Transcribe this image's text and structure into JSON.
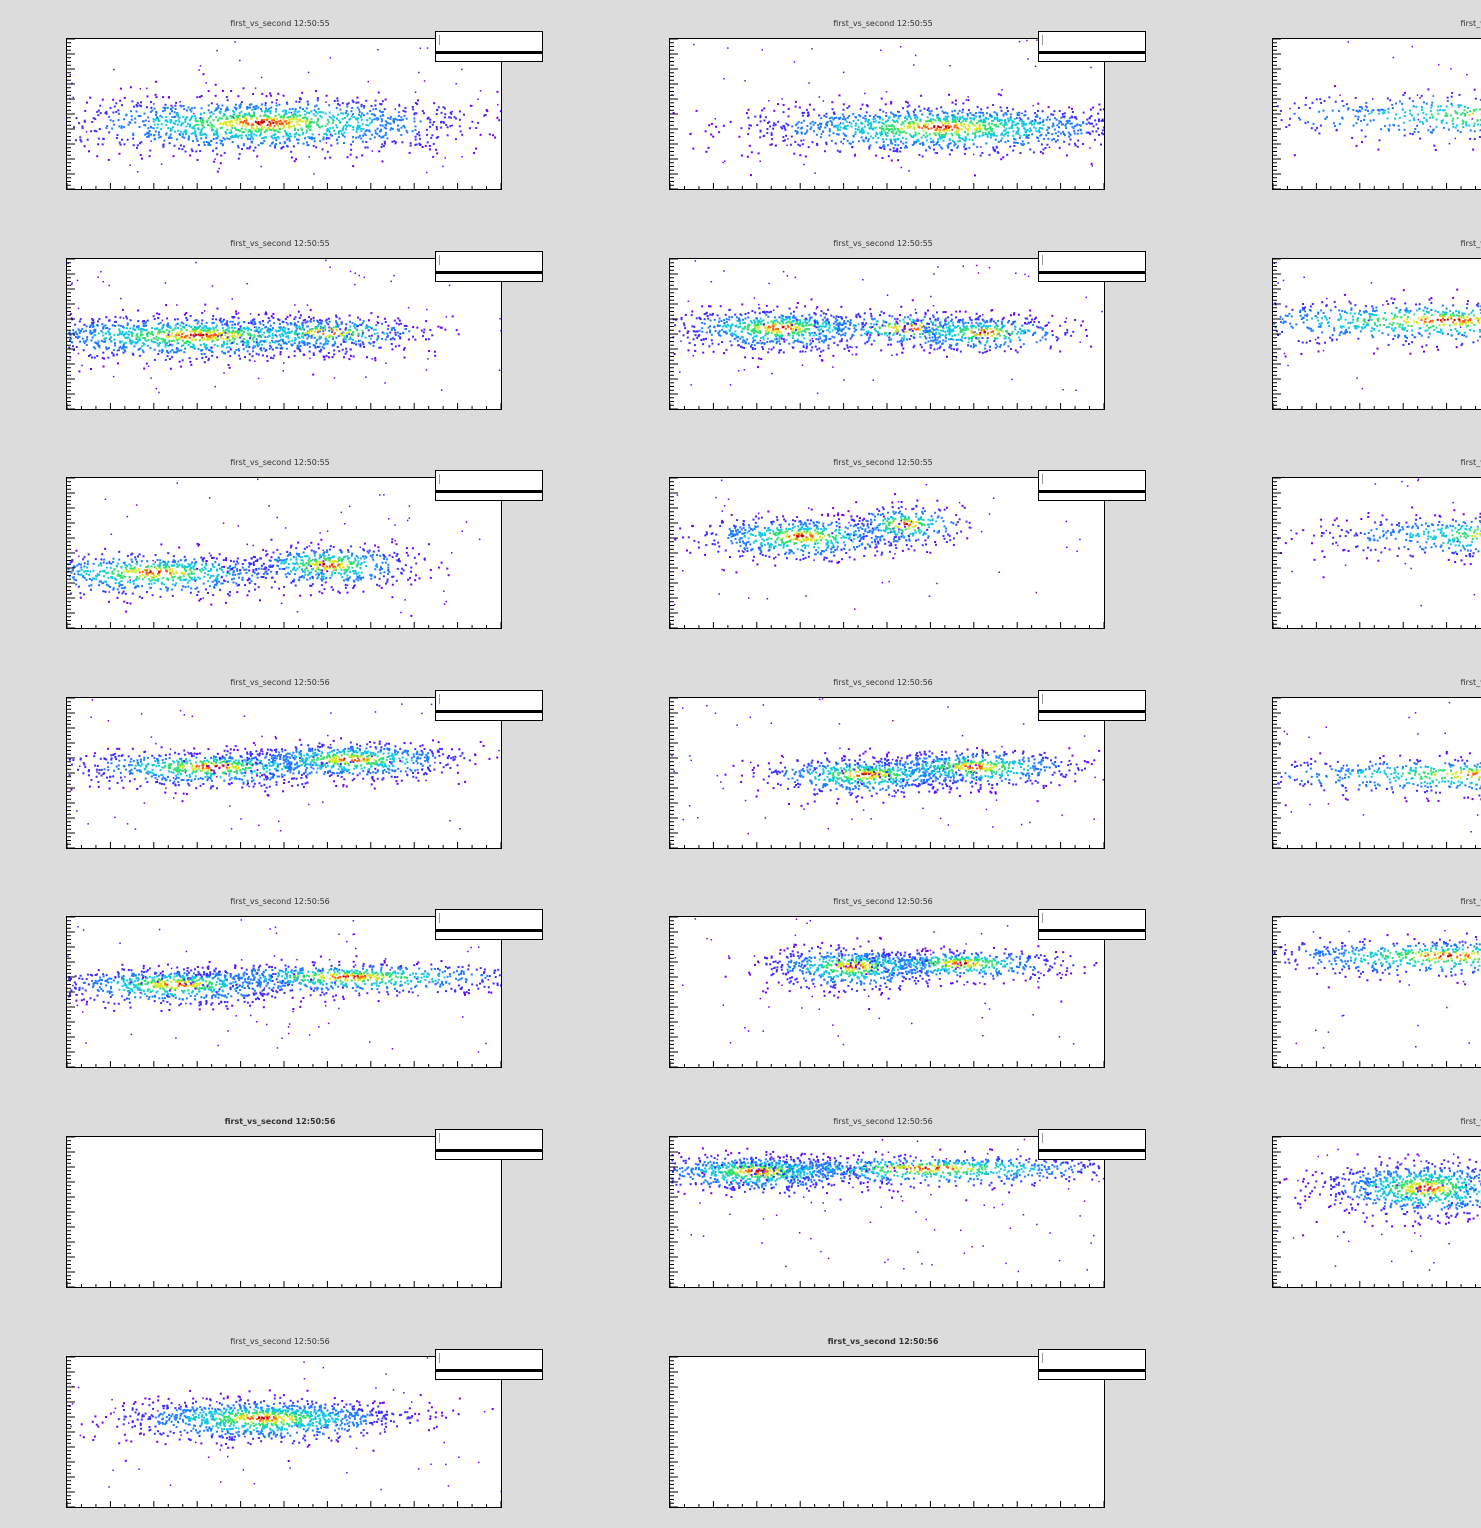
{
  "colors": {
    "background": "#dcdcdc",
    "frame": "#ffffff",
    "palette": [
      "#6a00ff",
      "#3d2bff",
      "#1e7bff",
      "#10c8e0",
      "#30e070",
      "#d8e820",
      "#ff6010",
      "#c00000"
    ]
  },
  "chart_data": [
    {
      "type": "heatmap",
      "title": "first_vs_second  12:50:55",
      "empty": false
    },
    {
      "type": "heatmap",
      "title": "first_vs_second  12:50:55",
      "empty": false
    },
    {
      "type": "heatmap",
      "title": "first_vs_seco",
      "empty": false
    },
    {
      "type": "heatmap",
      "title": "first_vs_second  12:50:55",
      "empty": false
    },
    {
      "type": "heatmap",
      "title": "first_vs_second  12:50:55",
      "empty": false
    },
    {
      "type": "heatmap",
      "title": "first_vs_seco",
      "empty": false
    },
    {
      "type": "heatmap",
      "title": "first_vs_second  12:50:55",
      "empty": false
    },
    {
      "type": "heatmap",
      "title": "first_vs_second  12:50:55",
      "empty": false
    },
    {
      "type": "heatmap",
      "title": "first_vs_seco",
      "empty": false
    },
    {
      "type": "heatmap",
      "title": "first_vs_second  12:50:56",
      "empty": false
    },
    {
      "type": "heatmap",
      "title": "first_vs_second  12:50:56",
      "empty": false
    },
    {
      "type": "heatmap",
      "title": "first_vs_seco",
      "empty": false
    },
    {
      "type": "heatmap",
      "title": "first_vs_second  12:50:56",
      "empty": false
    },
    {
      "type": "heatmap",
      "title": "first_vs_second  12:50:56",
      "empty": false
    },
    {
      "type": "heatmap",
      "title": "first_vs_seco",
      "empty": false
    },
    {
      "type": "heatmap",
      "title": "first_vs_second  12:50:56",
      "empty": true
    },
    {
      "type": "heatmap",
      "title": "first_vs_second  12:50:56",
      "empty": false
    },
    {
      "type": "heatmap",
      "title": "first_vs_seco",
      "empty": false
    },
    {
      "type": "heatmap",
      "title": "first_vs_second  12:50:56",
      "empty": false
    },
    {
      "type": "heatmap",
      "title": "first_vs_second  12:50:56",
      "empty": true
    }
  ]
}
